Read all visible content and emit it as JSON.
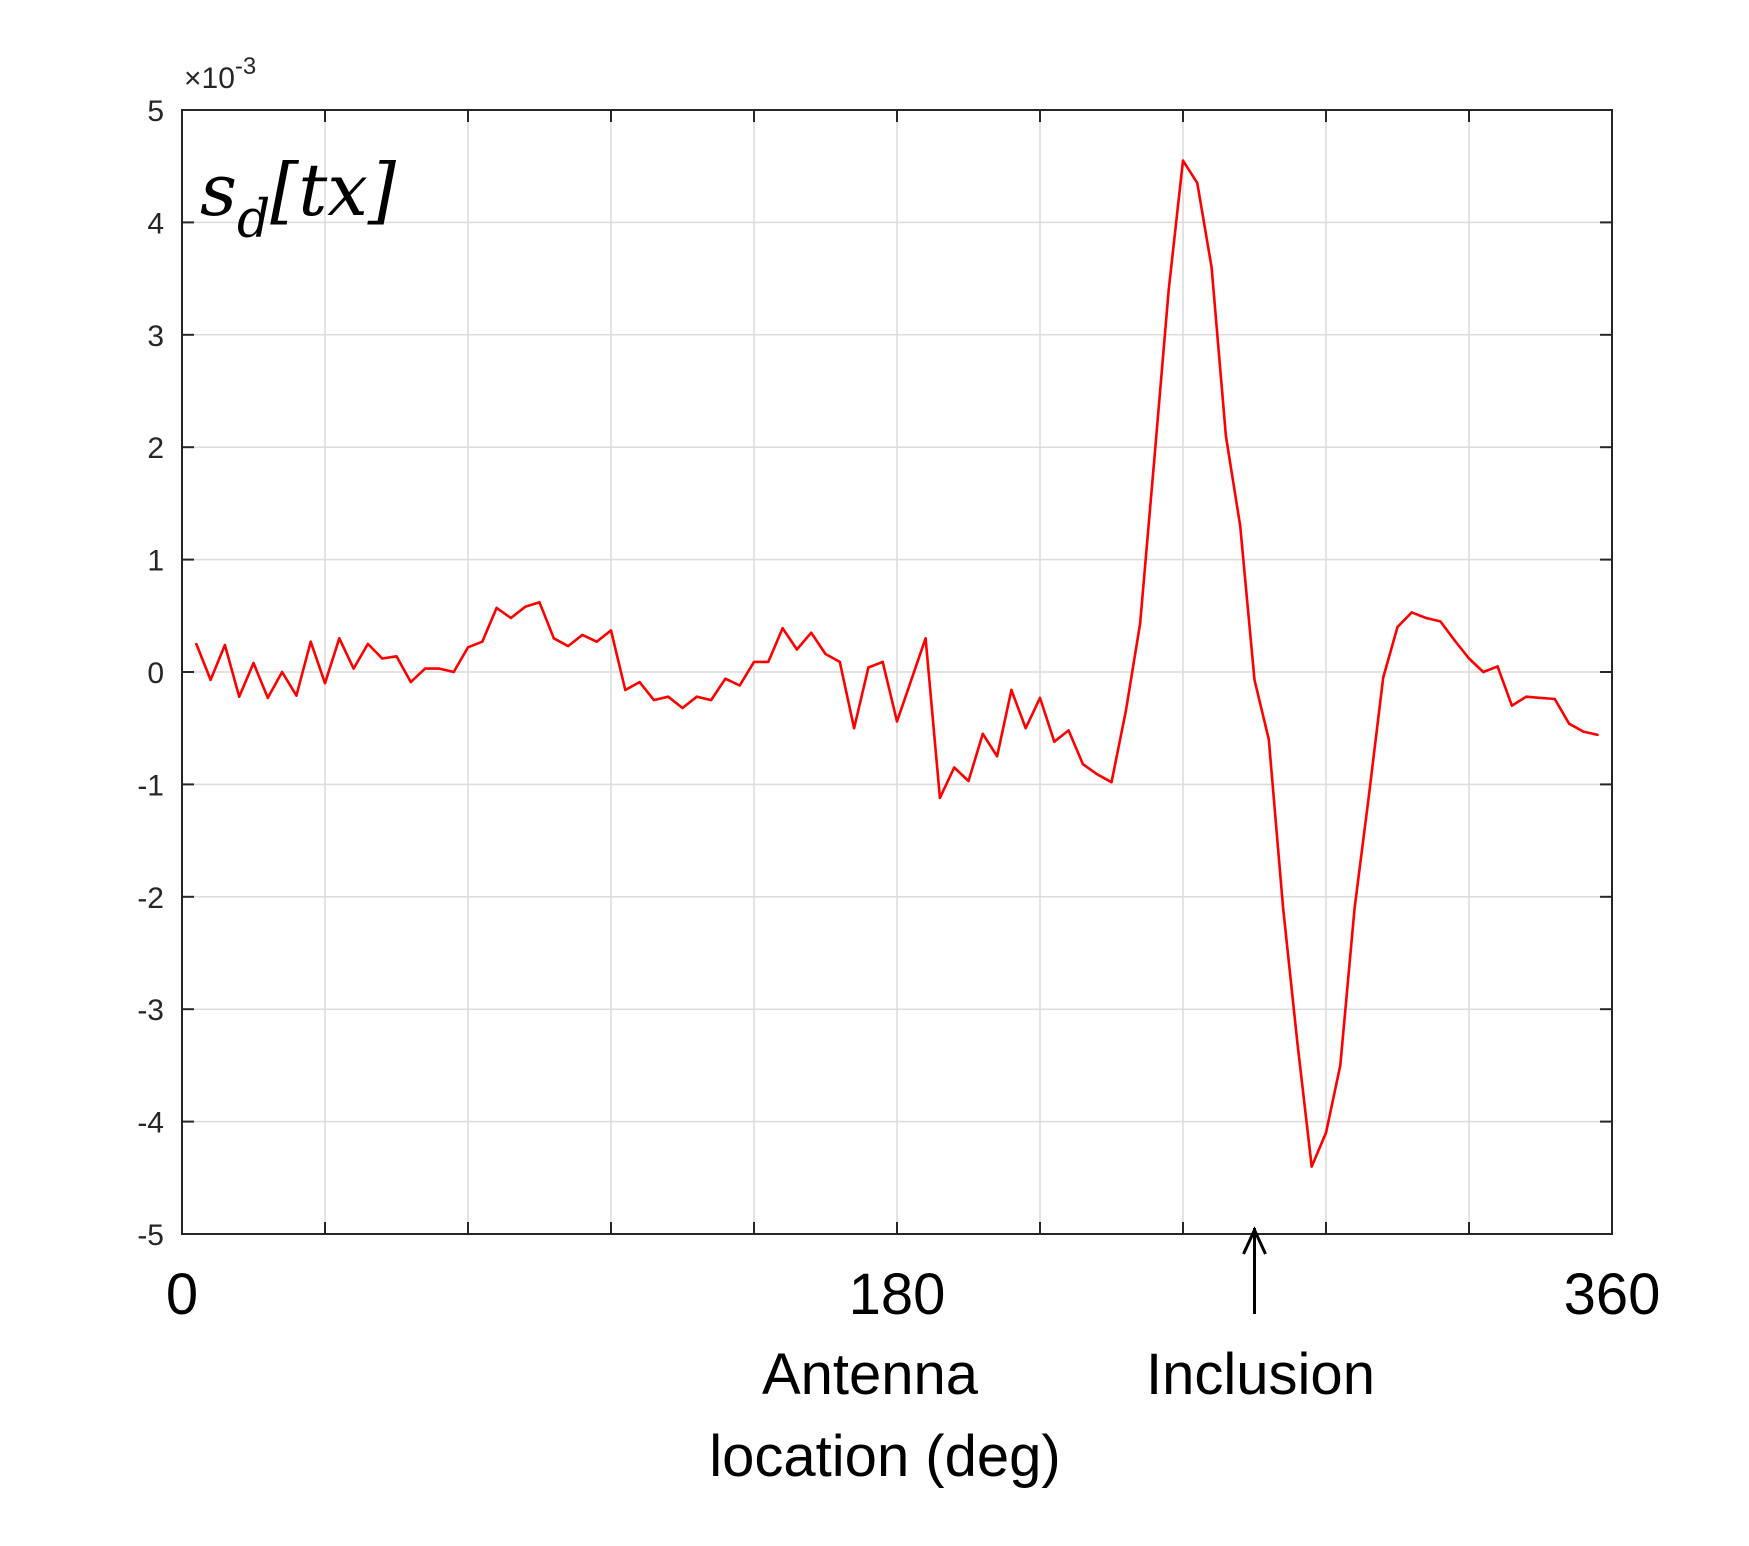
{
  "chart_data": {
    "type": "line",
    "title": "s_d[tx]",
    "title_parts": {
      "main": "s",
      "sub": "d",
      "arg": "[tx]"
    },
    "xlabel_lines": [
      "Antenna",
      "location  (deg)"
    ],
    "ylabel": "",
    "exponent_label": "×10",
    "exponent_power": "-3",
    "xlim": [
      0,
      360
    ],
    "ylim": [
      -5,
      5
    ],
    "x_ticks": [
      0,
      180,
      360
    ],
    "x_tick_labels": [
      "0",
      "180",
      "360"
    ],
    "x_grid_count": 10,
    "y_ticks": [
      5,
      4,
      3,
      2,
      1,
      0,
      -1,
      -2,
      -3,
      -4,
      -5
    ],
    "y_tick_labels": [
      "5",
      "4",
      "3",
      "2",
      "1",
      "0",
      "-1",
      "-2",
      "-3",
      "-4",
      "-5"
    ],
    "grid": true,
    "annotation": {
      "text": "Inclusion",
      "x": 270,
      "arrow": true
    },
    "series": [
      {
        "name": "s_d[tx]",
        "color": "#ff0000",
        "x": [
          3.6,
          7.2,
          10.8,
          14.4,
          18,
          21.6,
          25.2,
          28.8,
          32.4,
          36,
          39.6,
          43.2,
          46.8,
          50.4,
          54,
          57.6,
          61.2,
          64.8,
          68.4,
          72,
          75.6,
          79.2,
          82.8,
          86.4,
          90,
          93.6,
          97.2,
          100.8,
          104.4,
          108,
          111.6,
          115.2,
          118.8,
          122.4,
          126,
          129.6,
          133.2,
          136.8,
          140.4,
          144,
          147.6,
          151.2,
          154.8,
          158.4,
          162,
          165.6,
          169.2,
          172.8,
          176.4,
          180,
          183.6,
          187.2,
          190.8,
          194.4,
          198,
          201.6,
          205.2,
          208.8,
          212.4,
          216,
          219.6,
          223.2,
          226.8,
          230.4,
          234,
          237.6,
          241.2,
          244.8,
          248.4,
          252,
          255.6,
          259.2,
          262.8,
          266.4,
          270,
          273.6,
          277.2,
          280.8,
          284.4,
          288,
          291.6,
          295.2,
          298.8,
          302.4,
          306,
          309.6,
          313.2,
          316.8,
          320.4,
          324,
          327.6,
          331.2,
          334.8,
          338.4,
          342,
          345.6,
          349.2,
          352.8,
          356.4
        ],
        "values": [
          0.00025,
          -7e-05,
          0.00024,
          -0.00022,
          8e-05,
          -0.00023,
          0.0,
          -0.00021,
          0.00027,
          -0.0001,
          0.0003,
          3e-05,
          0.00025,
          0.00012,
          0.00014,
          -9e-05,
          3e-05,
          3e-05,
          0.0,
          0.00022,
          0.00027,
          0.00057,
          0.00048,
          0.00058,
          0.00062,
          0.0003,
          0.00023,
          0.00033,
          0.00027,
          0.00037,
          -0.00016,
          -9e-05,
          -0.00025,
          -0.00022,
          -0.00032,
          -0.00022,
          -0.00025,
          -6e-05,
          -0.00012,
          9e-05,
          9e-05,
          0.00039,
          0.0002,
          0.00035,
          0.00016,
          9e-05,
          -0.0005,
          4e-05,
          9e-05,
          -0.00044,
          -7e-05,
          0.0003,
          -0.00112,
          -0.00085,
          -0.00097,
          -0.00055,
          -0.00075,
          -0.00016,
          -0.0005,
          -0.00023,
          -0.00062,
          -0.00052,
          -0.00082,
          -0.00091,
          -0.00098,
          -0.00035,
          0.00043,
          0.0019,
          0.0034,
          0.00455,
          0.00435,
          0.0036,
          0.0021,
          0.0013,
          -7e-05,
          -0.0006,
          -0.0021,
          -0.0033,
          -0.0044,
          -0.0041,
          -0.0035,
          -0.0021,
          -0.0011,
          -5e-05,
          0.0004,
          0.00053,
          0.00048,
          0.00045,
          0.00028,
          0.00012,
          0.0,
          5e-05,
          -0.0003,
          -0.00022,
          -0.00023,
          -0.00024,
          -0.00046,
          -0.00053,
          -0.00056
        ]
      }
    ]
  }
}
